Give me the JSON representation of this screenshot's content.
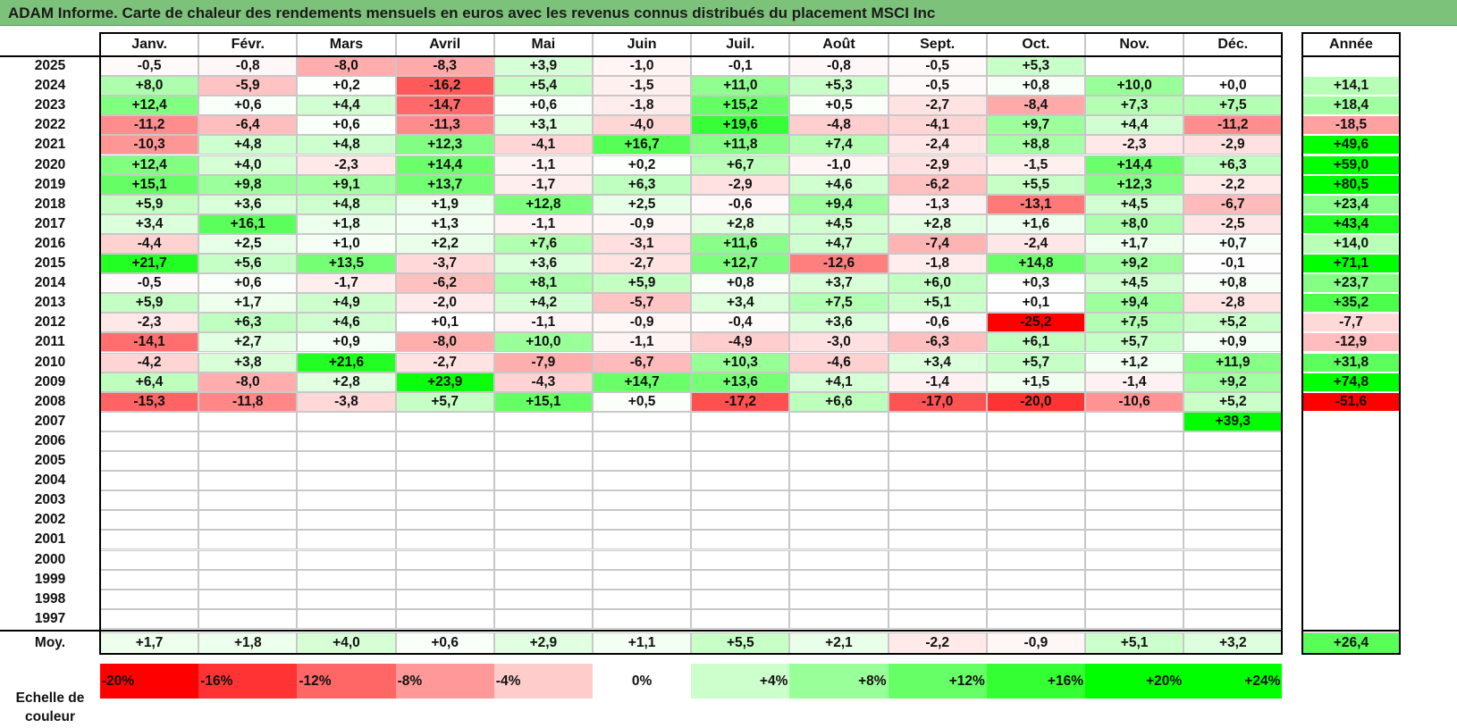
{
  "title": "ADAM Informe. Carte de chaleur des rendements mensuels en euros avec les revenus connus distribués du placement MSCI Inc",
  "chart_data": {
    "type": "heatmap",
    "title": "ADAM Informe. Carte de chaleur des rendements mensuels en euros avec les revenus connus distribués du placement MSCI Inc",
    "months": [
      "Janv.",
      "Févr.",
      "Mars",
      "Avril",
      "Mai",
      "Juin",
      "Juil.",
      "Août",
      "Sept.",
      "Oct.",
      "Nov.",
      "Déc."
    ],
    "annual_header": "Année",
    "rows": [
      {
        "year": "2025",
        "values": [
          -0.5,
          -0.8,
          -8.0,
          -8.3,
          3.9,
          -1.0,
          -0.1,
          -0.8,
          -0.5,
          5.3,
          null,
          null
        ],
        "annual": null
      },
      {
        "year": "2024",
        "values": [
          8.0,
          -5.9,
          0.2,
          -16.2,
          5.4,
          -1.5,
          11.0,
          5.3,
          -0.5,
          0.8,
          10.0,
          0.0
        ],
        "annual": 14.1
      },
      {
        "year": "2023",
        "values": [
          12.4,
          0.6,
          4.4,
          -14.7,
          0.6,
          -1.8,
          15.2,
          0.5,
          -2.7,
          -8.4,
          7.3,
          7.5
        ],
        "annual": 18.4
      },
      {
        "year": "2022",
        "values": [
          -11.2,
          -6.4,
          0.6,
          -11.3,
          3.1,
          -4.0,
          19.6,
          -4.8,
          -4.1,
          9.7,
          4.4,
          -11.2
        ],
        "annual": -18.5
      },
      {
        "year": "2021",
        "values": [
          -10.3,
          4.8,
          4.8,
          12.3,
          -4.1,
          16.7,
          11.8,
          7.4,
          -2.4,
          8.8,
          -2.3,
          -2.9
        ],
        "annual": 49.6
      },
      {
        "year": "2020",
        "values": [
          12.4,
          4.0,
          -2.3,
          14.4,
          -1.1,
          0.2,
          6.7,
          -1.0,
          -2.9,
          -1.5,
          14.4,
          6.3
        ],
        "annual": 59.0
      },
      {
        "year": "2019",
        "values": [
          15.1,
          9.8,
          9.1,
          13.7,
          -1.7,
          6.3,
          -2.9,
          4.6,
          -6.2,
          5.5,
          12.3,
          -2.2
        ],
        "annual": 80.5
      },
      {
        "year": "2018",
        "values": [
          5.9,
          3.6,
          4.8,
          1.9,
          12.8,
          2.5,
          -0.6,
          9.4,
          -1.3,
          -13.1,
          4.5,
          -6.7
        ],
        "annual": 23.4
      },
      {
        "year": "2017",
        "values": [
          3.4,
          16.1,
          1.8,
          1.3,
          -1.1,
          -0.9,
          2.8,
          4.5,
          2.8,
          1.6,
          8.0,
          -2.5
        ],
        "annual": 43.4
      },
      {
        "year": "2016",
        "values": [
          -4.4,
          2.5,
          1.0,
          2.2,
          7.6,
          -3.1,
          11.6,
          4.7,
          -7.4,
          -2.4,
          1.7,
          0.7
        ],
        "annual": 14.0
      },
      {
        "year": "2015",
        "values": [
          21.7,
          5.6,
          13.5,
          -3.7,
          3.6,
          -2.7,
          12.7,
          -12.6,
          -1.8,
          14.8,
          9.2,
          -0.1
        ],
        "annual": 71.1
      },
      {
        "year": "2014",
        "values": [
          -0.5,
          0.6,
          -1.7,
          -6.2,
          8.1,
          5.9,
          0.8,
          3.7,
          6.0,
          0.3,
          4.5,
          0.8
        ],
        "annual": 23.7
      },
      {
        "year": "2013",
        "values": [
          5.9,
          1.7,
          4.9,
          -2.0,
          4.2,
          -5.7,
          3.4,
          7.5,
          5.1,
          0.1,
          9.4,
          -2.8
        ],
        "annual": 35.2
      },
      {
        "year": "2012",
        "values": [
          -2.3,
          6.3,
          4.6,
          0.1,
          -1.1,
          -0.9,
          -0.4,
          3.6,
          -0.6,
          -25.2,
          7.5,
          5.2
        ],
        "annual": -7.7
      },
      {
        "year": "2011",
        "values": [
          -14.1,
          2.7,
          0.9,
          -8.0,
          10.0,
          -1.1,
          -4.9,
          -3.0,
          -6.3,
          6.1,
          5.7,
          0.9
        ],
        "annual": -12.9
      },
      {
        "year": "2010",
        "values": [
          -4.2,
          3.8,
          21.6,
          -2.7,
          -7.9,
          -6.7,
          10.3,
          -4.6,
          3.4,
          5.7,
          1.2,
          11.9
        ],
        "annual": 31.8
      },
      {
        "year": "2009",
        "values": [
          6.4,
          -8.0,
          2.8,
          23.9,
          -4.3,
          14.7,
          13.6,
          4.1,
          -1.4,
          1.5,
          -1.4,
          9.2
        ],
        "annual": 74.8
      },
      {
        "year": "2008",
        "values": [
          -15.3,
          -11.8,
          -3.8,
          5.7,
          15.1,
          0.5,
          -17.2,
          6.6,
          -17.0,
          -20.0,
          -10.6,
          5.2
        ],
        "annual": -51.6
      },
      {
        "year": "2007",
        "values": [
          null,
          null,
          null,
          null,
          null,
          null,
          null,
          null,
          null,
          null,
          null,
          39.3
        ],
        "annual": null
      },
      {
        "year": "2006",
        "values": [
          null,
          null,
          null,
          null,
          null,
          null,
          null,
          null,
          null,
          null,
          null,
          null
        ],
        "annual": null
      },
      {
        "year": "2005",
        "values": [
          null,
          null,
          null,
          null,
          null,
          null,
          null,
          null,
          null,
          null,
          null,
          null
        ],
        "annual": null
      },
      {
        "year": "2004",
        "values": [
          null,
          null,
          null,
          null,
          null,
          null,
          null,
          null,
          null,
          null,
          null,
          null
        ],
        "annual": null
      },
      {
        "year": "2003",
        "values": [
          null,
          null,
          null,
          null,
          null,
          null,
          null,
          null,
          null,
          null,
          null,
          null
        ],
        "annual": null
      },
      {
        "year": "2002",
        "values": [
          null,
          null,
          null,
          null,
          null,
          null,
          null,
          null,
          null,
          null,
          null,
          null
        ],
        "annual": null
      },
      {
        "year": "2001",
        "values": [
          null,
          null,
          null,
          null,
          null,
          null,
          null,
          null,
          null,
          null,
          null,
          null
        ],
        "annual": null
      },
      {
        "year": "2000",
        "values": [
          null,
          null,
          null,
          null,
          null,
          null,
          null,
          null,
          null,
          null,
          null,
          null
        ],
        "annual": null
      },
      {
        "year": "1999",
        "values": [
          null,
          null,
          null,
          null,
          null,
          null,
          null,
          null,
          null,
          null,
          null,
          null
        ],
        "annual": null
      },
      {
        "year": "1998",
        "values": [
          null,
          null,
          null,
          null,
          null,
          null,
          null,
          null,
          null,
          null,
          null,
          null
        ],
        "annual": null
      },
      {
        "year": "1997",
        "values": [
          null,
          null,
          null,
          null,
          null,
          null,
          null,
          null,
          null,
          null,
          null,
          null
        ],
        "annual": null
      }
    ],
    "average": {
      "label": "Moy.",
      "values": [
        1.7,
        1.8,
        4.0,
        0.6,
        2.9,
        1.1,
        5.5,
        2.1,
        -2.2,
        -0.9,
        5.1,
        3.2
      ],
      "annual": 26.4
    },
    "color_scale": {
      "label": "Echelle de couleur",
      "steps": [
        "-20%",
        "-16%",
        "-12%",
        "-8%",
        "-4%",
        "0%",
        "+4%",
        "+8%",
        "+12%",
        "+16%",
        "+20%",
        "+24%"
      ],
      "step_values": [
        -20,
        -16,
        -12,
        -8,
        -4,
        0,
        4,
        8,
        12,
        16,
        20,
        24
      ]
    },
    "colors": {
      "negative": "#ff0000",
      "positive": "#00ff00",
      "neutral": "#ffffff",
      "title_bar": "#7dc27a"
    }
  }
}
